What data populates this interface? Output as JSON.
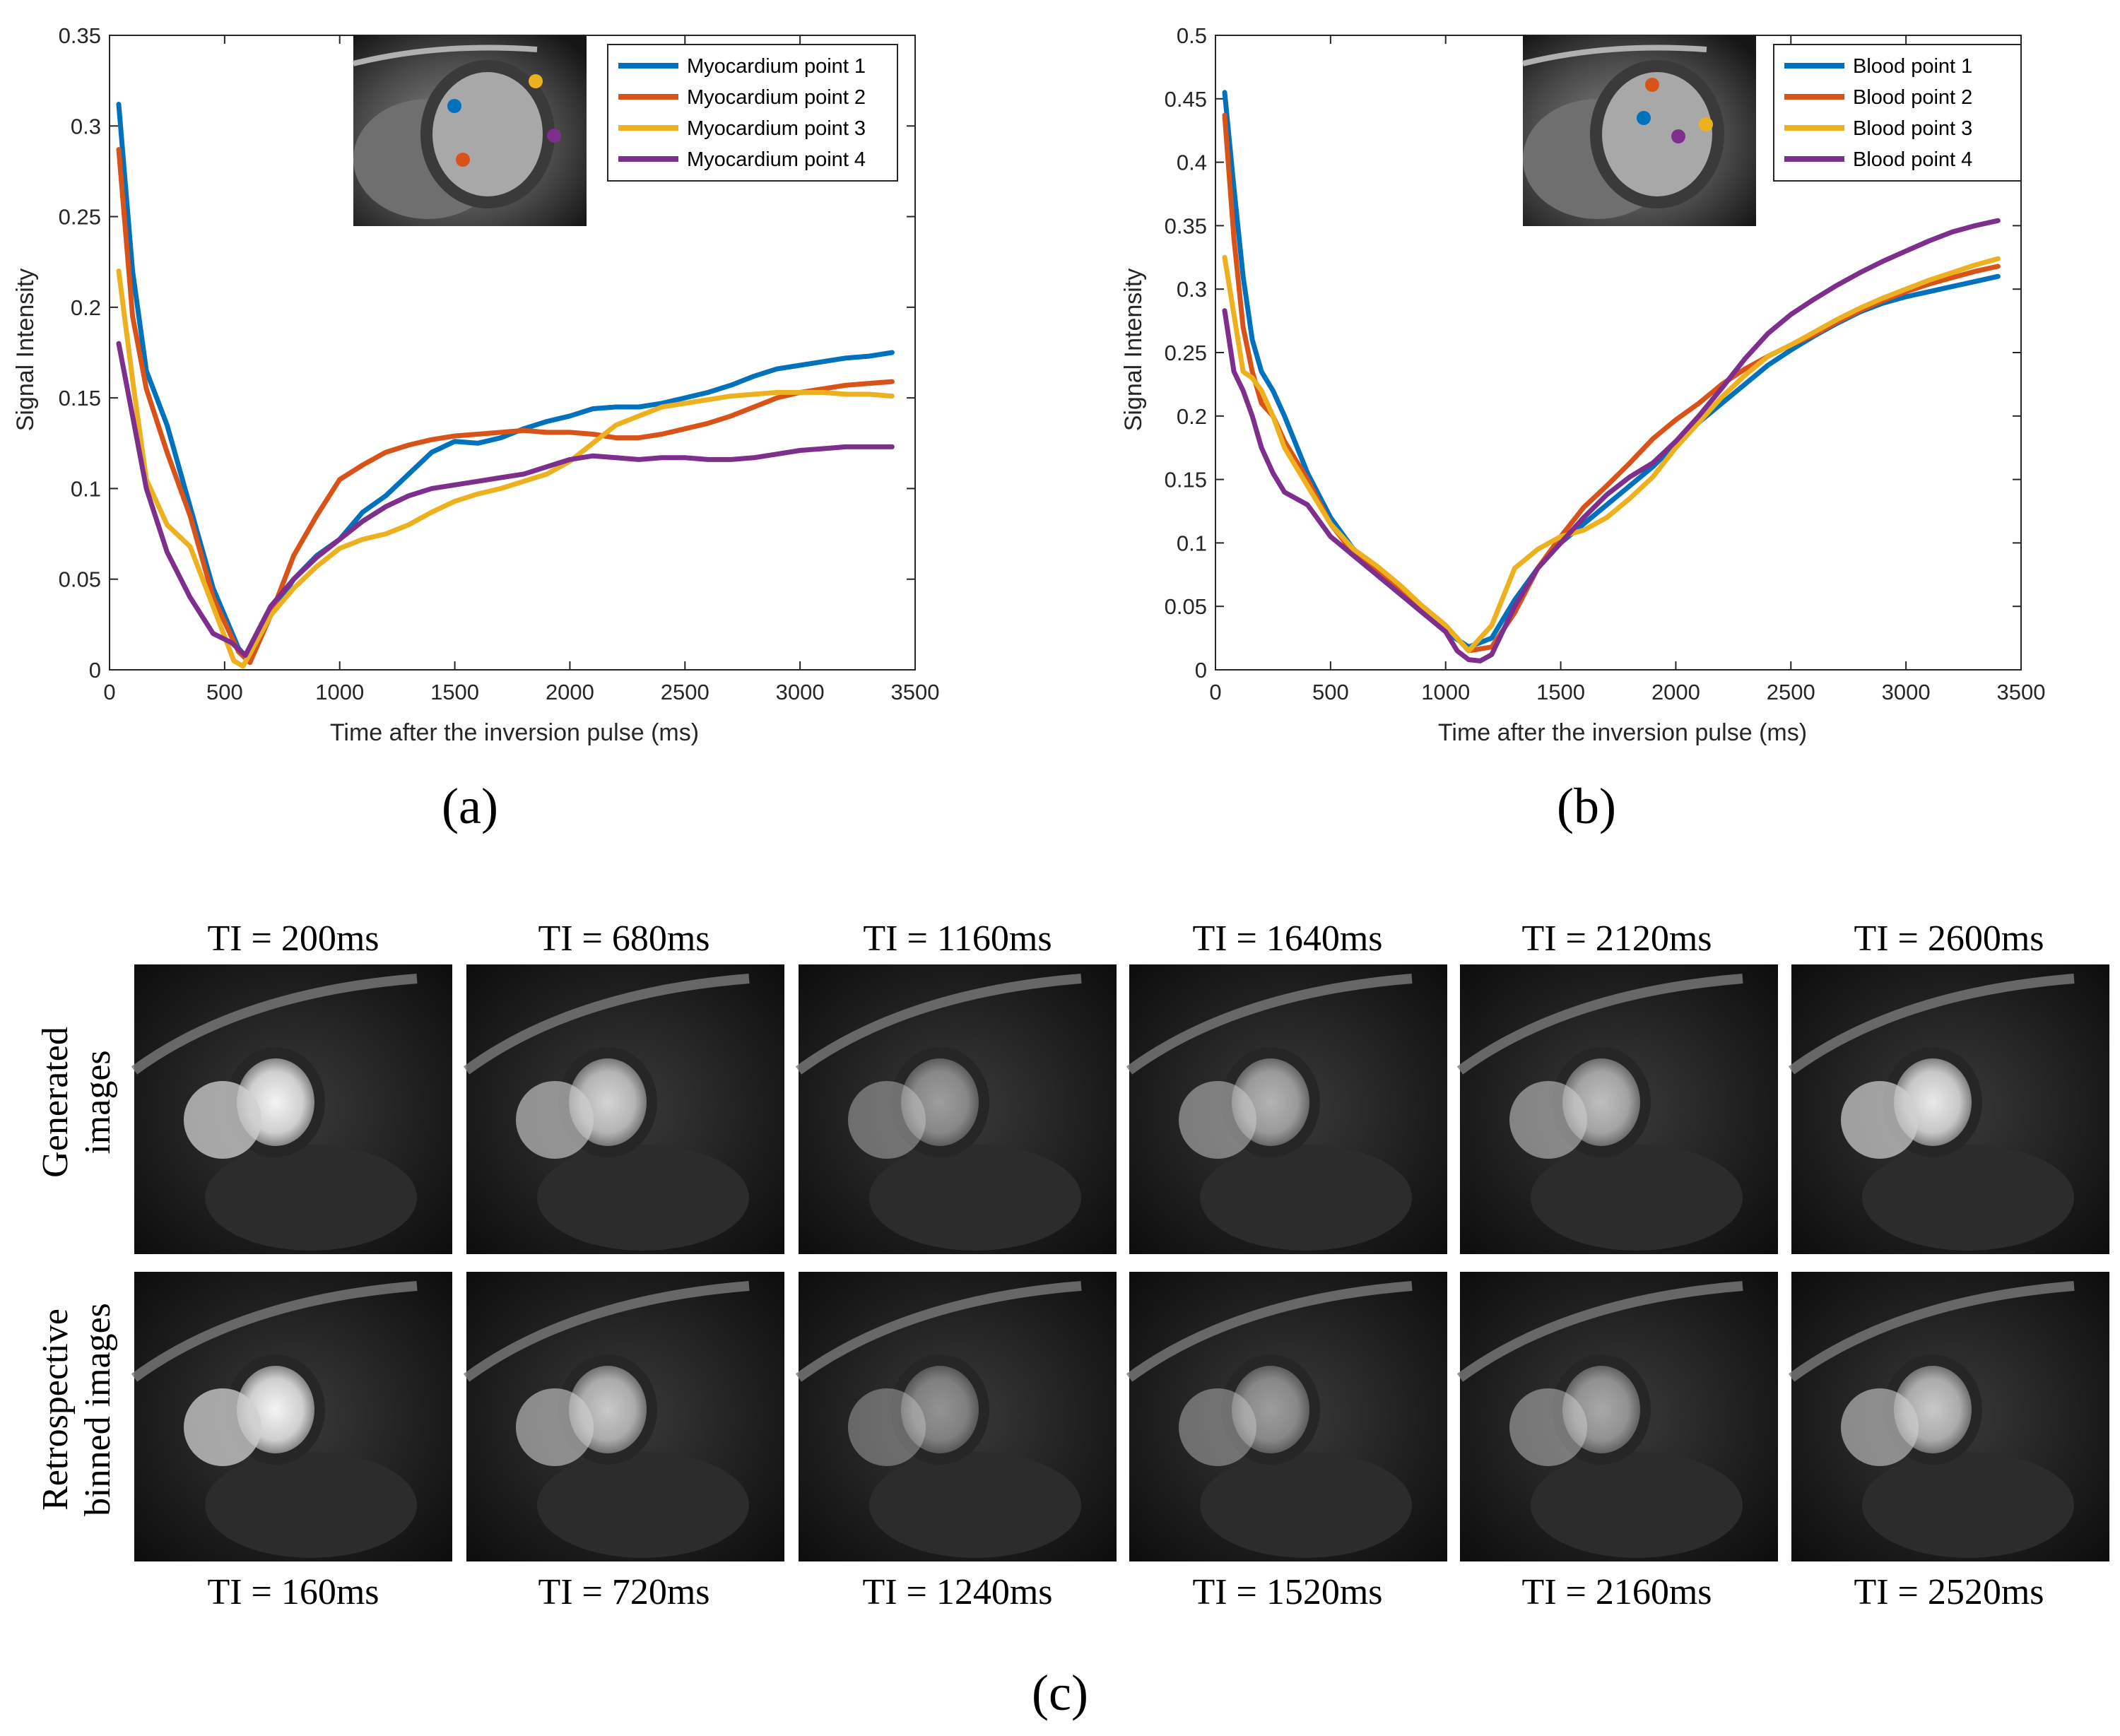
{
  "chart_data": [
    {
      "id": "a",
      "type": "line",
      "panel_label": "(a)",
      "xlabel": "Time after the inversion pulse (ms)",
      "ylabel": "Signal Intensity",
      "xlim": [
        0,
        3500
      ],
      "ylim": [
        0,
        0.35
      ],
      "xticks": [
        0,
        500,
        1000,
        1500,
        2000,
        2500,
        3000,
        3500
      ],
      "yticks": [
        0,
        0.05,
        0.1,
        0.15,
        0.2,
        0.25,
        0.3,
        0.35
      ],
      "ytick_labels": [
        "0",
        "0.05",
        "0.1",
        "0.15",
        "0.2",
        "0.25",
        "0.3",
        "0.35"
      ],
      "grid": false,
      "legend_position": "top-right",
      "inset": {
        "description": "myocardium-point-locations",
        "marker_colors": [
          "#0072BD",
          "#D95319",
          "#EDB120",
          "#7E2F8E"
        ]
      },
      "series": [
        {
          "name": "Myocardium point 1",
          "color": "#0072BD",
          "x": [
            40,
            100,
            160,
            250,
            350,
            450,
            560,
            600,
            700,
            800,
            900,
            1000,
            1100,
            1200,
            1300,
            1400,
            1500,
            1600,
            1700,
            1800,
            1900,
            2000,
            2100,
            2200,
            2300,
            2400,
            2500,
            2600,
            2700,
            2800,
            2900,
            3000,
            3100,
            3200,
            3300,
            3400
          ],
          "y": [
            0.312,
            0.22,
            0.165,
            0.135,
            0.09,
            0.045,
            0.012,
            0.006,
            0.03,
            0.05,
            0.063,
            0.072,
            0.087,
            0.096,
            0.108,
            0.12,
            0.126,
            0.125,
            0.128,
            0.133,
            0.137,
            0.14,
            0.144,
            0.145,
            0.145,
            0.147,
            0.15,
            0.153,
            0.157,
            0.162,
            0.166,
            0.168,
            0.17,
            0.172,
            0.173,
            0.175
          ]
        },
        {
          "name": "Myocardium point 2",
          "color": "#D95319",
          "x": [
            40,
            100,
            160,
            250,
            350,
            450,
            560,
            610,
            700,
            800,
            900,
            1000,
            1100,
            1200,
            1300,
            1400,
            1500,
            1600,
            1700,
            1800,
            1900,
            2000,
            2100,
            2200,
            2300,
            2400,
            2500,
            2600,
            2700,
            2800,
            2900,
            3000,
            3100,
            3200,
            3300,
            3400
          ],
          "y": [
            0.287,
            0.195,
            0.155,
            0.12,
            0.085,
            0.04,
            0.01,
            0.004,
            0.03,
            0.063,
            0.085,
            0.105,
            0.113,
            0.12,
            0.124,
            0.127,
            0.129,
            0.13,
            0.131,
            0.132,
            0.131,
            0.131,
            0.13,
            0.128,
            0.128,
            0.13,
            0.133,
            0.136,
            0.14,
            0.145,
            0.15,
            0.153,
            0.155,
            0.157,
            0.158,
            0.159
          ]
        },
        {
          "name": "Myocardium point 3",
          "color": "#EDB120",
          "x": [
            40,
            100,
            160,
            250,
            350,
            450,
            540,
            580,
            700,
            800,
            900,
            1000,
            1100,
            1200,
            1300,
            1400,
            1500,
            1600,
            1700,
            1800,
            1900,
            2000,
            2100,
            2200,
            2300,
            2400,
            2500,
            2600,
            2700,
            2800,
            2900,
            3000,
            3100,
            3200,
            3300,
            3400
          ],
          "y": [
            0.22,
            0.16,
            0.105,
            0.08,
            0.068,
            0.035,
            0.005,
            0.002,
            0.03,
            0.045,
            0.057,
            0.067,
            0.072,
            0.075,
            0.08,
            0.087,
            0.093,
            0.097,
            0.1,
            0.104,
            0.108,
            0.115,
            0.125,
            0.135,
            0.14,
            0.145,
            0.147,
            0.149,
            0.151,
            0.152,
            0.153,
            0.153,
            0.153,
            0.152,
            0.152,
            0.151
          ]
        },
        {
          "name": "Myocardium point 4",
          "color": "#7E2F8E",
          "x": [
            40,
            100,
            160,
            250,
            350,
            450,
            530,
            590,
            700,
            800,
            900,
            1000,
            1100,
            1200,
            1300,
            1400,
            1500,
            1600,
            1700,
            1800,
            1900,
            2000,
            2100,
            2200,
            2300,
            2400,
            2500,
            2600,
            2700,
            2800,
            2900,
            3000,
            3100,
            3200,
            3300,
            3400
          ],
          "y": [
            0.18,
            0.14,
            0.1,
            0.065,
            0.04,
            0.02,
            0.015,
            0.008,
            0.035,
            0.05,
            0.062,
            0.072,
            0.082,
            0.09,
            0.096,
            0.1,
            0.102,
            0.104,
            0.106,
            0.108,
            0.112,
            0.116,
            0.118,
            0.117,
            0.116,
            0.117,
            0.117,
            0.116,
            0.116,
            0.117,
            0.119,
            0.121,
            0.122,
            0.123,
            0.123,
            0.123
          ]
        }
      ]
    },
    {
      "id": "b",
      "type": "line",
      "panel_label": "(b)",
      "xlabel": "Time after the inversion pulse (ms)",
      "ylabel": "Signal Intensity",
      "xlim": [
        0,
        3500
      ],
      "ylim": [
        0,
        0.5
      ],
      "xticks": [
        0,
        500,
        1000,
        1500,
        2000,
        2500,
        3000,
        3500
      ],
      "yticks": [
        0,
        0.05,
        0.1,
        0.15,
        0.2,
        0.25,
        0.3,
        0.35,
        0.4,
        0.45,
        0.5
      ],
      "ytick_labels": [
        "0",
        "0.05",
        "0.1",
        "0.15",
        "0.2",
        "0.25",
        "0.3",
        "0.35",
        "0.4",
        "0.45",
        "0.5"
      ],
      "grid": false,
      "legend_position": "top-right",
      "inset": {
        "description": "blood-point-locations",
        "marker_colors": [
          "#0072BD",
          "#D95319",
          "#EDB120",
          "#7E2F8E"
        ]
      },
      "series": [
        {
          "name": "Blood point 1",
          "color": "#0072BD",
          "x": [
            40,
            80,
            120,
            160,
            200,
            250,
            300,
            400,
            500,
            600,
            700,
            800,
            900,
            1000,
            1100,
            1200,
            1300,
            1400,
            1500,
            1600,
            1700,
            1800,
            1900,
            2000,
            2100,
            2200,
            2300,
            2400,
            2500,
            2600,
            2700,
            2800,
            2900,
            3000,
            3100,
            3200,
            3300,
            3400
          ],
          "y": [
            0.455,
            0.38,
            0.31,
            0.26,
            0.235,
            0.22,
            0.2,
            0.155,
            0.12,
            0.095,
            0.075,
            0.06,
            0.045,
            0.03,
            0.018,
            0.025,
            0.055,
            0.08,
            0.1,
            0.115,
            0.13,
            0.145,
            0.16,
            0.178,
            0.195,
            0.21,
            0.225,
            0.24,
            0.252,
            0.263,
            0.273,
            0.282,
            0.289,
            0.294,
            0.298,
            0.302,
            0.306,
            0.31
          ]
        },
        {
          "name": "Blood point 2",
          "color": "#D95319",
          "x": [
            40,
            80,
            120,
            160,
            200,
            250,
            300,
            400,
            500,
            600,
            700,
            800,
            900,
            1000,
            1100,
            1200,
            1300,
            1400,
            1500,
            1600,
            1700,
            1800,
            1900,
            2000,
            2100,
            2200,
            2300,
            2400,
            2500,
            2600,
            2700,
            2800,
            2900,
            3000,
            3100,
            3200,
            3300,
            3400
          ],
          "y": [
            0.437,
            0.34,
            0.27,
            0.235,
            0.21,
            0.2,
            0.18,
            0.15,
            0.115,
            0.092,
            0.078,
            0.064,
            0.05,
            0.035,
            0.015,
            0.018,
            0.045,
            0.08,
            0.105,
            0.128,
            0.145,
            0.163,
            0.182,
            0.197,
            0.21,
            0.225,
            0.237,
            0.247,
            0.256,
            0.264,
            0.274,
            0.283,
            0.291,
            0.298,
            0.304,
            0.309,
            0.314,
            0.318
          ]
        },
        {
          "name": "Blood point 3",
          "color": "#EDB120",
          "x": [
            40,
            80,
            120,
            160,
            200,
            250,
            300,
            400,
            500,
            600,
            700,
            800,
            900,
            1000,
            1100,
            1200,
            1300,
            1400,
            1500,
            1600,
            1700,
            1800,
            1900,
            2000,
            2100,
            2200,
            2300,
            2400,
            2500,
            2600,
            2700,
            2800,
            2900,
            3000,
            3100,
            3200,
            3300,
            3400
          ],
          "y": [
            0.325,
            0.28,
            0.235,
            0.23,
            0.22,
            0.2,
            0.175,
            0.145,
            0.115,
            0.095,
            0.082,
            0.067,
            0.05,
            0.035,
            0.015,
            0.035,
            0.08,
            0.095,
            0.105,
            0.11,
            0.12,
            0.135,
            0.152,
            0.175,
            0.195,
            0.215,
            0.232,
            0.247,
            0.256,
            0.266,
            0.276,
            0.285,
            0.293,
            0.3,
            0.307,
            0.313,
            0.319,
            0.324
          ]
        },
        {
          "name": "Blood point 4",
          "color": "#7E2F8E",
          "x": [
            40,
            80,
            120,
            160,
            200,
            250,
            300,
            400,
            500,
            600,
            700,
            800,
            900,
            1000,
            1050,
            1100,
            1150,
            1200,
            1300,
            1400,
            1500,
            1600,
            1700,
            1800,
            1900,
            2000,
            2100,
            2200,
            2300,
            2400,
            2500,
            2600,
            2700,
            2800,
            2900,
            3000,
            3100,
            3200,
            3300,
            3400
          ],
          "y": [
            0.283,
            0.235,
            0.22,
            0.2,
            0.175,
            0.155,
            0.14,
            0.13,
            0.105,
            0.09,
            0.075,
            0.06,
            0.045,
            0.03,
            0.015,
            0.008,
            0.007,
            0.012,
            0.05,
            0.08,
            0.1,
            0.12,
            0.138,
            0.152,
            0.163,
            0.18,
            0.2,
            0.222,
            0.245,
            0.265,
            0.28,
            0.292,
            0.303,
            0.313,
            0.322,
            0.33,
            0.338,
            0.345,
            0.35,
            0.354
          ]
        }
      ]
    }
  ],
  "panel_c": {
    "label": "(c)",
    "row_labels": [
      [
        "Generated",
        "images"
      ],
      [
        "Retrospective",
        "binned images"
      ]
    ],
    "top_ti": [
      "TI = 200ms",
      "TI = 680ms",
      "TI = 1160ms",
      "TI = 1640ms",
      "TI = 2120ms",
      "TI = 2600ms"
    ],
    "bottom_ti": [
      "TI = 160ms",
      "TI = 720ms",
      "TI = 1240ms",
      "TI = 1520ms",
      "TI = 2160ms",
      "TI = 2520ms"
    ],
    "generated_brightness": [
      0.95,
      0.8,
      0.55,
      0.65,
      0.7,
      0.9
    ],
    "binned_brightness": [
      0.95,
      0.75,
      0.5,
      0.55,
      0.6,
      0.75
    ]
  }
}
